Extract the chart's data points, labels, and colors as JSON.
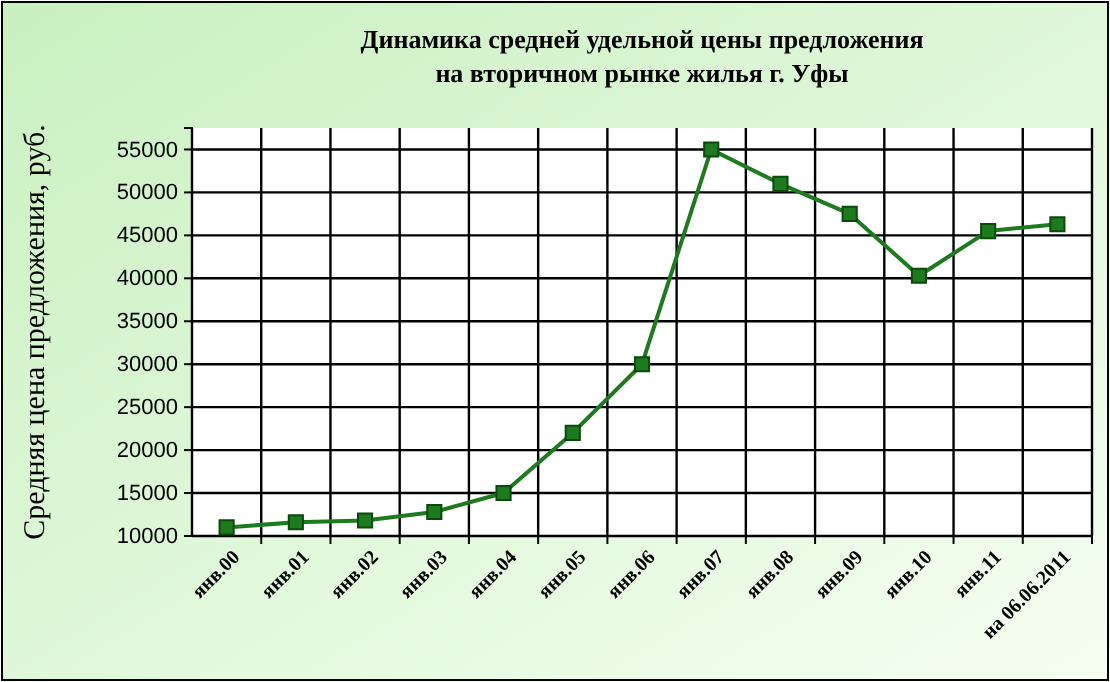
{
  "chart_data": {
    "type": "line",
    "title": "Динамика средней удельной цены предложения\nна вторичном рынке жилья г. Уфы",
    "ylabel": "Средняя цена предложения, руб.",
    "categories": [
      "янв.00",
      "янв.01",
      "янв.02",
      "янв.03",
      "янв.04",
      "янв.05",
      "янв.06",
      "янв.07",
      "янв.08",
      "янв.09",
      "янв.10",
      "янв.11",
      "на 06.06.2011"
    ],
    "series": [
      {
        "color": "#1e7a1e",
        "values": [
          11000,
          11600,
          11800,
          12800,
          15000,
          22000,
          30000,
          55000,
          51000,
          47500,
          40300,
          45500,
          46300
        ]
      }
    ],
    "ylim": [
      10000,
      57500
    ],
    "yticks": [
      10000,
      15000,
      20000,
      25000,
      30000,
      35000,
      40000,
      45000,
      50000,
      55000
    ],
    "grid": true,
    "marker": "square",
    "line_style": "solid"
  }
}
